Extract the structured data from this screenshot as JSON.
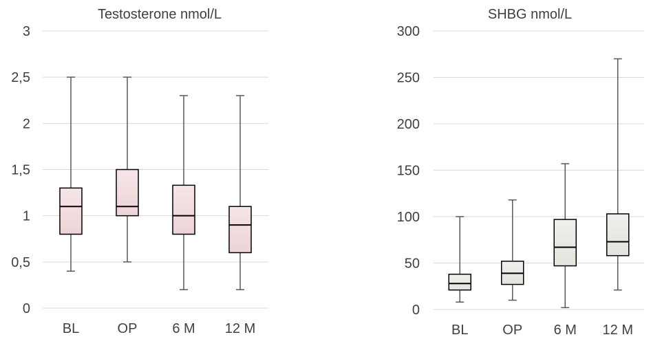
{
  "chart_data": [
    {
      "type": "box",
      "title": "Testosterone nmol/L",
      "categories": [
        "BL",
        "OP",
        "6 M",
        "12 M"
      ],
      "yticks": [
        "0",
        "0,5",
        "1",
        "1,5",
        "2",
        "2,5",
        "3"
      ],
      "ylim": [
        0,
        3
      ],
      "grid": true,
      "series": [
        {
          "category": "BL",
          "min": 0.4,
          "q1": 0.8,
          "median": 1.1,
          "q3": 1.3,
          "max": 2.5
        },
        {
          "category": "OP",
          "min": 0.5,
          "q1": 1.0,
          "median": 1.1,
          "q3": 1.5,
          "max": 2.5
        },
        {
          "category": "6 M",
          "min": 0.2,
          "q1": 0.8,
          "median": 1.0,
          "q3": 1.33,
          "max": 2.3
        },
        {
          "category": "12 M",
          "min": 0.2,
          "q1": 0.6,
          "median": 0.9,
          "q3": 1.1,
          "max": 2.3
        }
      ],
      "colors": {
        "box_top": "#f5e6e7",
        "box_bottom": "#eed3d6",
        "outline": "#000000",
        "whisker": "#595959",
        "grid": "#d9d9d9"
      }
    },
    {
      "type": "box",
      "title": "SHBG nmol/L",
      "categories": [
        "BL",
        "OP",
        "6 M",
        "12 M"
      ],
      "yticks": [
        "0",
        "50",
        "100",
        "150",
        "200",
        "250",
        "300"
      ],
      "ylim": [
        0,
        300
      ],
      "grid": true,
      "series": [
        {
          "category": "BL",
          "min": 8,
          "q1": 21,
          "median": 28,
          "q3": 38,
          "max": 100
        },
        {
          "category": "OP",
          "min": 10,
          "q1": 27,
          "median": 39,
          "q3": 52,
          "max": 118
        },
        {
          "category": "6 M",
          "min": 2,
          "q1": 47,
          "median": 67,
          "q3": 97,
          "max": 157
        },
        {
          "category": "12 M",
          "min": 21,
          "q1": 58,
          "median": 73,
          "q3": 103,
          "max": 270
        }
      ],
      "colors": {
        "box_top": "#efefec",
        "box_bottom": "#e4e3dd",
        "outline": "#000000",
        "whisker": "#595959",
        "grid": "#d9d9d9"
      }
    }
  ]
}
